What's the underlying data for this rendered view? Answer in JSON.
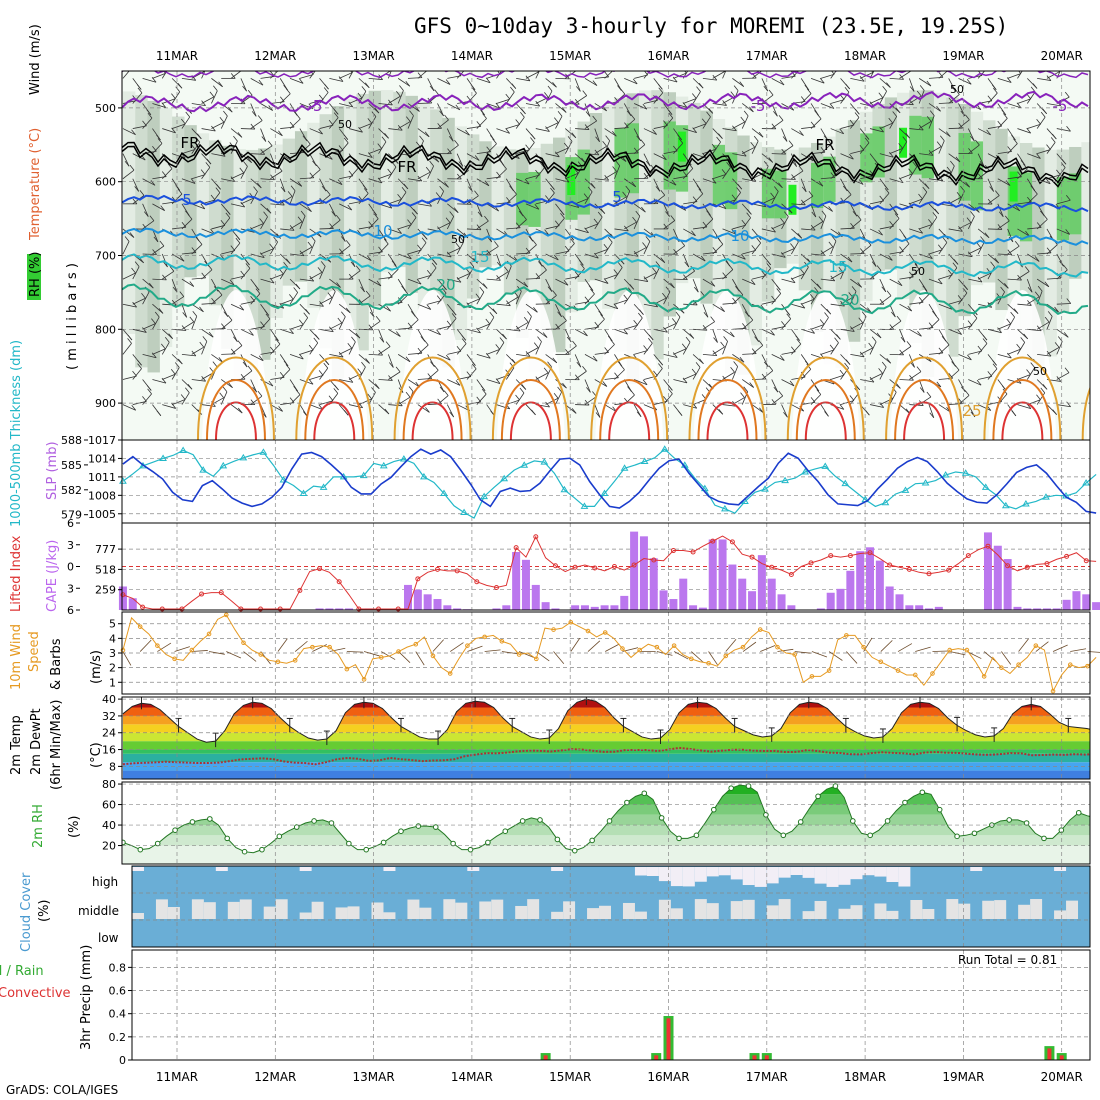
{
  "title": "GFS 0~10day 3-hourly for MOREMI (23.5E, 19.25S)",
  "footer": "GrADS: COLA/IGES",
  "date_labels": [
    "11MAR",
    "12MAR",
    "13MAR",
    "14MAR",
    "15MAR",
    "16MAR",
    "17MAR",
    "18MAR",
    "19MAR",
    "20MAR"
  ],
  "colors": {
    "rh_green": "#33cc33",
    "cape_purple": "#bb77ee",
    "lifted_red": "#dd3333",
    "wind_orange": "#e69a22",
    "thickness_cyan": "#22b8c8",
    "slp_blue": "#1a3ccc",
    "cloud_blue": "#6aaed6",
    "precip_green": "#33bb33",
    "precip_red": "#ee3333"
  },
  "panels": {
    "upper": {
      "ylabel_parts": [
        "Wind (m/s)",
        "Temperature (°C)",
        "RH (%)"
      ],
      "ylabel_side": "( m i l l i b a r s )",
      "contour_labels": [
        "-5",
        "-5",
        "-5",
        "FR",
        "FR",
        "FR",
        "5",
        "5",
        "10",
        "10",
        "15",
        "15",
        "20",
        "20",
        "25",
        "50",
        "50",
        "50",
        "50",
        "50"
      ]
    },
    "pressure": {
      "ylabel_left": "1000-500mb Thickness (dm)",
      "ylabel_right": "SLP (mb)"
    },
    "cape": {
      "ylabel_left": "Lifted Index",
      "ylabel_right": "CAPE (J/kg)"
    },
    "wind10m": {
      "ylabel_a": "10m Wind",
      "ylabel_b": "Speed",
      "ylabel_c": "& Barbs",
      "ylabel_unit": "(m/s)"
    },
    "temp": {
      "ylabel_a": "2m Temp",
      "ylabel_b": "2m DewPt",
      "ylabel_c": "(6hr Min/Max)",
      "ylabel_unit": "(°C)"
    },
    "rh2m": {
      "ylabel": "2m RH",
      "ylabel_unit": "(%)"
    },
    "cloud": {
      "ylabel": "Cloud Cover",
      "ylabel_unit": "(%)",
      "levels": [
        "high",
        "middle",
        "low"
      ]
    },
    "precip": {
      "ylabel_a": "Total / Rain",
      "ylabel_b": "Convective",
      "ylabel_c": "3hr Precip (mm)",
      "run_total": "Run Total = 0.81"
    }
  },
  "chart_data": [
    {
      "type": "heatmap",
      "name": "Upper-air cross section",
      "y_ticks": [
        500,
        600,
        700,
        800,
        900
      ],
      "ylim": [
        450,
        950
      ]
    },
    {
      "type": "line",
      "name": "Thickness and SLP",
      "y_ticks_left": [
        579,
        582,
        585,
        588
      ],
      "ylim_left": [
        578,
        588
      ],
      "y_ticks_right": [
        1005,
        1008,
        1011,
        1014,
        1017
      ],
      "ylim_right": [
        1003.5,
        1017
      ],
      "series": [
        {
          "values": [
            1010.3,
            1011.5,
            1012.8,
            1013.4,
            1014.0,
            1014.5,
            1015.3,
            1014.6,
            1012.1,
            1011.1,
            1012.8,
            1013.5,
            1014.1,
            1014.6,
            1015.0,
            1012.9,
            1010.5,
            1009.6,
            1008.3,
            1009.5,
            1009.3,
            1011.0,
            1011.0,
            1011.0,
            1011.2,
            1013.2,
            1012.8,
            1013.5,
            1013.9,
            1013.2,
            1011.0,
            1010.1,
            1008.3,
            1006.3,
            1005.2,
            1004.3,
            1007.8,
            1009.3,
            1010.7,
            1012.1,
            1012.9,
            1013.6,
            1013.4,
            1011.6,
            1008.9,
            1007.6,
            1006.2,
            1006.2,
            1008.3,
            1010.3,
            1012.4,
            1012.9,
            1013.5,
            1014.1,
            1015.5,
            1014.0,
            1012.9,
            1010.8,
            1009.1,
            1006.4,
            1005.8,
            1005.1,
            1007.0,
            1008.5,
            1009.0,
            1010.1,
            1010.4,
            1010.8,
            1011.8,
            1012.3,
            1012.7,
            1011.1,
            1009.9,
            1008.6,
            1007.3,
            1006.2,
            1006.8,
            1008.2,
            1008.8,
            1009.9,
            1010.0,
            1010.4,
            1011.3,
            1011.8,
            1011.6,
            1011.0,
            1009.3,
            1008.1,
            1006.3,
            1005.8,
            1006.6,
            1007.0,
            1007.7,
            1008.0,
            1007.9,
            1008.4,
            1010.0,
            1011.4
          ]
        },
        {
          "values": [
            585.1,
            586.0,
            585.0,
            584.2,
            583.3,
            581.7,
            580.8,
            580.6,
            582.5,
            583.1,
            582.1,
            581.0,
            580.4,
            580.0,
            580.3,
            581.1,
            582.3,
            584.5,
            586.3,
            586.5,
            586.0,
            585.0,
            583.9,
            582.3,
            581.5,
            581.5,
            582.7,
            583.5,
            584.8,
            586.0,
            586.9,
            586.3,
            586.8,
            586.0,
            584.4,
            582.7,
            580.8,
            580.0,
            581.8,
            582.2,
            581.8,
            581.9,
            582.8,
            584.3,
            585.7,
            585.8,
            585.0,
            583.0,
            581.4,
            580.0,
            579.8,
            580.6,
            581.7,
            583.2,
            584.6,
            585.5,
            585.7,
            584.0,
            582.6,
            581.2,
            580.6,
            580.3,
            580.2,
            581.3,
            582.4,
            583.4,
            585.2,
            586.4,
            585.8,
            584.3,
            583.0,
            581.4,
            580.3,
            580.2,
            580.1,
            580.7,
            582.1,
            583.3,
            584.6,
            585.4,
            585.9,
            585.4,
            584.2,
            582.8,
            581.8,
            580.9,
            580.5,
            580.4,
            581.4,
            582.7,
            584.1,
            584.7,
            585.0,
            584.0,
            582.5,
            581.1,
            580.5,
            579.4,
            579.2
          ]
        }
      ]
    },
    {
      "type": "bar",
      "name": "CAPE and Lifted Index",
      "y_ticks_left": [
        -6,
        -3,
        0,
        3,
        6
      ],
      "ylim_left": [
        -6,
        6
      ],
      "y_ticks_right": [
        259,
        518,
        777
      ],
      "ylim_right": [
        0,
        1110
      ],
      "series": [
        {
          "values": [
            300,
            150,
            0,
            0,
            0,
            0,
            0,
            0,
            0,
            0,
            0,
            0,
            0,
            0,
            0,
            0,
            0,
            0,
            0,
            0,
            20,
            20,
            20,
            20,
            0,
            20,
            0,
            0,
            20,
            320,
            260,
            200,
            140,
            60,
            20,
            10,
            0,
            0,
            20,
            60,
            740,
            640,
            320,
            100,
            20,
            0,
            60,
            60,
            40,
            60,
            60,
            180,
            1000,
            940,
            660,
            250,
            140,
            400,
            60,
            30,
            900,
            900,
            580,
            400,
            240,
            700,
            400,
            200,
            60,
            0,
            0,
            20,
            220,
            270,
            500,
            750,
            800,
            630,
            300,
            200,
            60,
            60,
            20,
            40,
            0,
            0,
            0,
            0,
            990,
            820,
            650,
            40,
            20,
            20,
            20,
            20,
            130,
            240,
            200,
            100
          ]
        },
        {
          "values": [
            3.9,
            4.4,
            5.6,
            6.9,
            7.4,
            8.3,
            7.0,
            4.8,
            3.8,
            3.6,
            3.6,
            4.7,
            6.3,
            7.7,
            8.5,
            8.9,
            9.2,
            8.5,
            3.3,
            0.7,
            0.3,
            0.8,
            2.1,
            3.9,
            6.2,
            6.2,
            6.5,
            6.4,
            6.6,
            6.7,
            1.7,
            0.8,
            0.4,
            0.6,
            0.6,
            1.0,
            2.1,
            2.6,
            2.9,
            2.6,
            -2.6,
            -1.3,
            -4.1,
            -1.2,
            -0.1,
            0.7,
            0.1,
            -0.2,
            0.2,
            0.6,
            0.0,
            0.5,
            -0.2,
            -1.1,
            -0.9,
            -0.8,
            -2.2,
            -2.2,
            -2.0,
            -2.8,
            -3.5,
            -4.2,
            -3.4,
            -1.7,
            -1.3,
            -0.4,
            0.1,
            0.5,
            1.1,
            0.0,
            -0.5,
            -0.9,
            -1.5,
            -1.3,
            -1.5,
            -1.8,
            -1.9,
            -1.1,
            -0.2,
            0.1,
            0.4,
            0.8,
            1.0,
            0.8,
            0.5,
            -0.4,
            -1.5,
            -2.3,
            -2.8,
            -1.6,
            -0.1,
            0.6,
            0.1,
            -0.3,
            -0.4,
            -1.0,
            -1.4,
            -1.9,
            -0.8,
            -0.7
          ]
        }
      ]
    },
    {
      "type": "line",
      "name": "10m Wind Speed",
      "y_ticks": [
        1,
        2,
        3,
        4,
        5
      ],
      "ylim": [
        0.2,
        5.8
      ],
      "values": [
        3.2,
        5.4,
        4.8,
        4.3,
        3.5,
        2.9,
        2.6,
        2.5,
        3.2,
        3.8,
        4.3,
        5.3,
        5.6,
        4.6,
        3.7,
        3.2,
        2.9,
        2.5,
        2.4,
        2.3,
        2.5,
        3.3,
        3.4,
        3.5,
        3.4,
        2.9,
        1.9,
        2.2,
        1.2,
        2.6,
        2.7,
        2.8,
        3.1,
        3.4,
        3.6,
        4.1,
        2.8,
        2.0,
        1.6,
        2.6,
        3.5,
        4.0,
        4.1,
        4.2,
        3.8,
        3.6,
        2.9,
        3.0,
        2.6,
        4.7,
        4.6,
        4.7,
        5.1,
        4.8,
        4.5,
        4.1,
        4.4,
        4.0,
        3.3,
        2.7,
        3.2,
        3.6,
        3.4,
        2.9,
        3.5,
        2.9,
        2.6,
        2.4,
        2.3,
        2.1,
        2.8,
        3.2,
        3.4,
        4.1,
        4.6,
        4.4,
        3.4,
        3.0,
        2.9,
        1.0,
        1.4,
        1.4,
        1.8,
        3.9,
        4.2,
        4.2,
        3.4,
        2.7,
        2.4,
        2.1,
        1.8,
        1.5,
        1.5,
        0.8,
        1.6,
        2.4,
        3.2,
        3.3,
        3.2,
        2.4,
        1.4,
        2.7,
        2.0,
        1.6,
        2.2,
        2.7,
        3.5,
        3.2,
        0.4,
        1.5,
        2.2,
        2.0,
        2.1,
        2.7
      ]
    },
    {
      "type": "area",
      "name": "2m Temperature and Dew Point",
      "y_ticks": [
        8,
        16,
        24,
        32,
        40
      ],
      "ylim": [
        2,
        41
      ],
      "series": [
        {
          "values": [
            33,
            36.5,
            38,
            37.5,
            35,
            31,
            27,
            24,
            21,
            19.5,
            20,
            25,
            33,
            37,
            38.5,
            38,
            35.5,
            31,
            27,
            24,
            21.5,
            20.5,
            21,
            25,
            33.5,
            37.5,
            38.5,
            38,
            35.5,
            31,
            27,
            24.5,
            22,
            21,
            21,
            25.5,
            34,
            38,
            39,
            38.5,
            36,
            31,
            27,
            24.5,
            22,
            21,
            21.5,
            26,
            34.5,
            38.5,
            40,
            39,
            36,
            31,
            27,
            24.5,
            22,
            21,
            21.5,
            25.5,
            33.5,
            37.5,
            38.5,
            38,
            35.5,
            31,
            27,
            25,
            23,
            22,
            22.5,
            26,
            33.5,
            37.5,
            38.5,
            38,
            35.5,
            31,
            27,
            24.5,
            22.5,
            21.5,
            22,
            26,
            33.5,
            37.5,
            38.5,
            38,
            35.5,
            31,
            27.5,
            25,
            23,
            22,
            22.5,
            26,
            33,
            36.5,
            37.5,
            36.5,
            33,
            29,
            27,
            26.5,
            26,
            25
          ]
        },
        {
          "values": [
            9.0,
            9.5,
            9.7,
            9.9,
            10.2,
            10.0,
            9.8,
            9.6,
            9.6,
            9.8,
            10.5,
            11.3,
            11.6,
            11.8,
            11.5,
            10.4,
            9.8,
            9.6,
            9.0,
            10.0,
            11.4,
            12.0,
            11.6,
            10.6,
            10.9,
            12.0,
            11.4,
            11.0,
            10.5,
            10.8,
            10.9,
            11.4,
            12.9,
            13.6,
            14.3,
            14.2,
            14.6,
            15.2,
            15.5,
            15.4,
            15.1,
            15.6,
            16.2,
            16.0,
            15.4,
            14.9,
            15.0,
            15.8,
            15.8,
            15.8,
            15.3,
            16.0,
            16.8,
            16.3,
            15.6,
            15.0,
            15.5,
            15.9,
            15.9,
            15.5,
            15.3,
            15.3,
            14.8,
            14.9,
            15.8,
            15.3,
            14.5,
            14.4,
            13.8,
            13.7,
            14.3,
            14.7,
            14.4,
            14.2,
            13.7,
            14.6,
            14.8,
            14.5,
            14.4,
            14.0,
            13.6,
            13.5,
            13.8,
            14.3,
            14.2,
            13.3,
            13.4,
            13.6,
            13.5,
            13.8,
            13.6,
            13.9
          ]
        }
      ]
    },
    {
      "type": "area",
      "name": "2m Relative Humidity",
      "y_ticks": [
        20,
        40,
        60,
        80
      ],
      "ylim": [
        2,
        82
      ],
      "values": [
        23,
        20,
        16,
        17,
        22,
        29,
        35,
        40,
        43,
        45,
        46,
        40,
        27,
        18,
        14,
        13,
        16,
        22,
        29,
        34,
        38,
        42,
        44,
        45,
        42,
        32,
        22,
        16,
        16,
        19,
        23,
        29,
        34,
        37,
        39,
        39,
        38,
        31,
        22,
        16,
        16,
        18,
        23,
        29,
        34,
        39,
        44,
        47,
        45,
        38,
        26,
        17,
        15,
        18,
        25,
        34,
        44,
        54,
        62,
        68,
        71,
        65,
        47,
        34,
        27,
        27,
        30,
        42,
        55,
        68,
        76,
        79,
        78,
        72,
        50,
        36,
        30,
        34,
        43,
        56,
        68,
        75,
        78,
        67,
        44,
        32,
        30,
        35,
        44,
        54,
        62,
        68,
        72,
        70,
        55,
        38,
        29,
        30,
        32,
        36,
        40,
        44,
        45,
        45,
        42,
        32,
        27,
        27,
        35,
        45,
        52,
        49,
        47
      ]
    },
    {
      "type": "table",
      "name": "Cloud Cover",
      "rows": [
        "high",
        "middle",
        "low"
      ]
    },
    {
      "type": "bar",
      "name": "3hr Precipitation",
      "y_ticks": [
        0,
        0.2,
        0.4,
        0.6,
        0.8
      ],
      "ylim": [
        0,
        0.95
      ],
      "x": [
        "14MAR-18Z",
        "15MAR-21Z",
        "16MAR-00Z",
        "16MAR-21Z",
        "17MAR-00Z",
        "19MAR-21Z",
        "20MAR-00Z"
      ],
      "series": [
        {
          "values": [
            0.06,
            0.06,
            0.38,
            0.06,
            0.06,
            0.12,
            0.06
          ]
        },
        {
          "values": [
            0.04,
            0.04,
            0.36,
            0.04,
            0.04,
            0.1,
            0.04
          ]
        }
      ]
    }
  ]
}
